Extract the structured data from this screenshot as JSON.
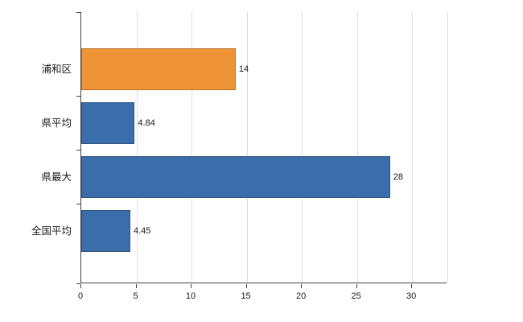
{
  "chart_data": {
    "type": "bar",
    "orientation": "horizontal",
    "title": "",
    "xlabel": "",
    "ylabel": "",
    "categories": [
      "浦和区",
      "県平均",
      "県最大",
      "全国平均"
    ],
    "values": [
      14,
      4.84,
      28,
      4.45
    ],
    "value_labels": [
      "14",
      "4.84",
      "28",
      "4.45"
    ],
    "bar_colors": [
      "#ee9436",
      "#3b6dab",
      "#3b6dab",
      "#3b6dab"
    ],
    "x_ticks": [
      0,
      5,
      10,
      15,
      20,
      25,
      30
    ],
    "x_tick_labels": [
      "0",
      "5",
      "10",
      "15",
      "20",
      "25",
      "30"
    ],
    "xlim": [
      0,
      33.2
    ],
    "grid": true,
    "legend": false
  },
  "colors": {
    "bar_blue": "#3b6dab",
    "bar_orange": "#ee9436",
    "gridline": "#dddddd",
    "axis": "#404040",
    "text": "#1a1a1a",
    "background": "#ffffff"
  }
}
